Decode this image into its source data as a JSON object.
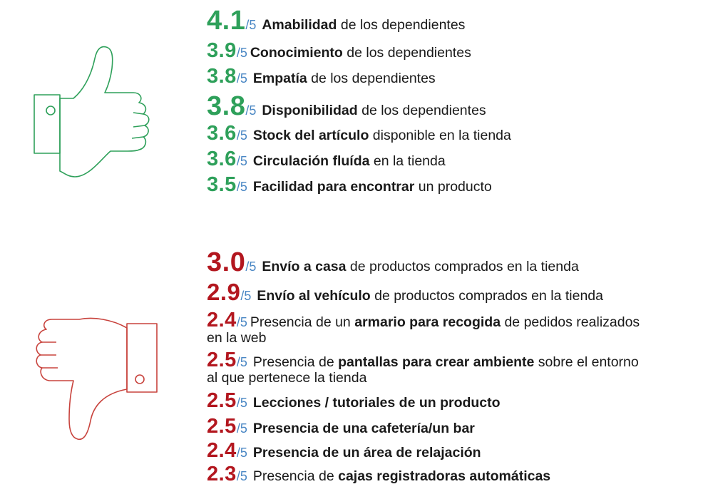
{
  "colors": {
    "positive": "#2ea05a",
    "negative": "#b3171f",
    "denominator": "#4a87c4",
    "text": "#1a1a1a"
  },
  "icons": {
    "positive": "thumbs-up-outline",
    "negative": "thumbs-down-outline"
  },
  "positive": [
    {
      "score": "4.1",
      "denom": "/5",
      "parts": [
        "",
        "Amabilidad",
        " de los dependientes"
      ]
    },
    {
      "score": "3.9",
      "denom": "/5",
      "parts": [
        "",
        "Conocimiento",
        " de los dependientes"
      ]
    },
    {
      "score": "3.8",
      "denom": "/5",
      "parts": [
        "",
        "Empatía",
        " de los dependientes"
      ]
    },
    {
      "score": "3.8",
      "denom": "/5",
      "parts": [
        "",
        "Disponibilidad",
        " de los dependientes"
      ]
    },
    {
      "score": "3.6",
      "denom": "/5",
      "parts": [
        "",
        "Stock del artículo",
        " disponible en la tienda"
      ]
    },
    {
      "score": "3.6",
      "denom": "/5",
      "parts": [
        "",
        "Circulación fluída",
        " en la tienda"
      ]
    },
    {
      "score": "3.5",
      "denom": "/5",
      "parts": [
        "",
        "Facilidad para encontrar",
        " un producto"
      ]
    }
  ],
  "negative": [
    {
      "score": "3.0",
      "denom": "/5",
      "parts": [
        "",
        "Envío a casa",
        " de productos comprados en la tienda"
      ]
    },
    {
      "score": "2.9",
      "denom": "/5",
      "parts": [
        "",
        "Envío al vehículo",
        " de productos comprados en la tienda"
      ]
    },
    {
      "score": "2.4",
      "denom": "/5",
      "parts": [
        "Presencia de un ",
        "armario para recogida",
        " de pedidos realizados en la web"
      ]
    },
    {
      "score": "2.5",
      "denom": "/5",
      "parts": [
        "Presencia de ",
        "pantallas para crear ambiente",
        " sobre el entorno al que pertenece la tienda"
      ]
    },
    {
      "score": "2.5",
      "denom": "/5",
      "parts": [
        "",
        "Lecciones / tutoriales de un producto",
        ""
      ]
    },
    {
      "score": "2.5",
      "denom": "/5",
      "parts": [
        "",
        "Presencia de una cafetería/un bar",
        ""
      ]
    },
    {
      "score": "2.4",
      "denom": "/5",
      "parts": [
        "",
        "Presencia de un área de relajación",
        ""
      ]
    },
    {
      "score": "2.3",
      "denom": "/5",
      "parts": [
        "Presencia de ",
        "cajas registradoras automáticas",
        ""
      ]
    }
  ]
}
